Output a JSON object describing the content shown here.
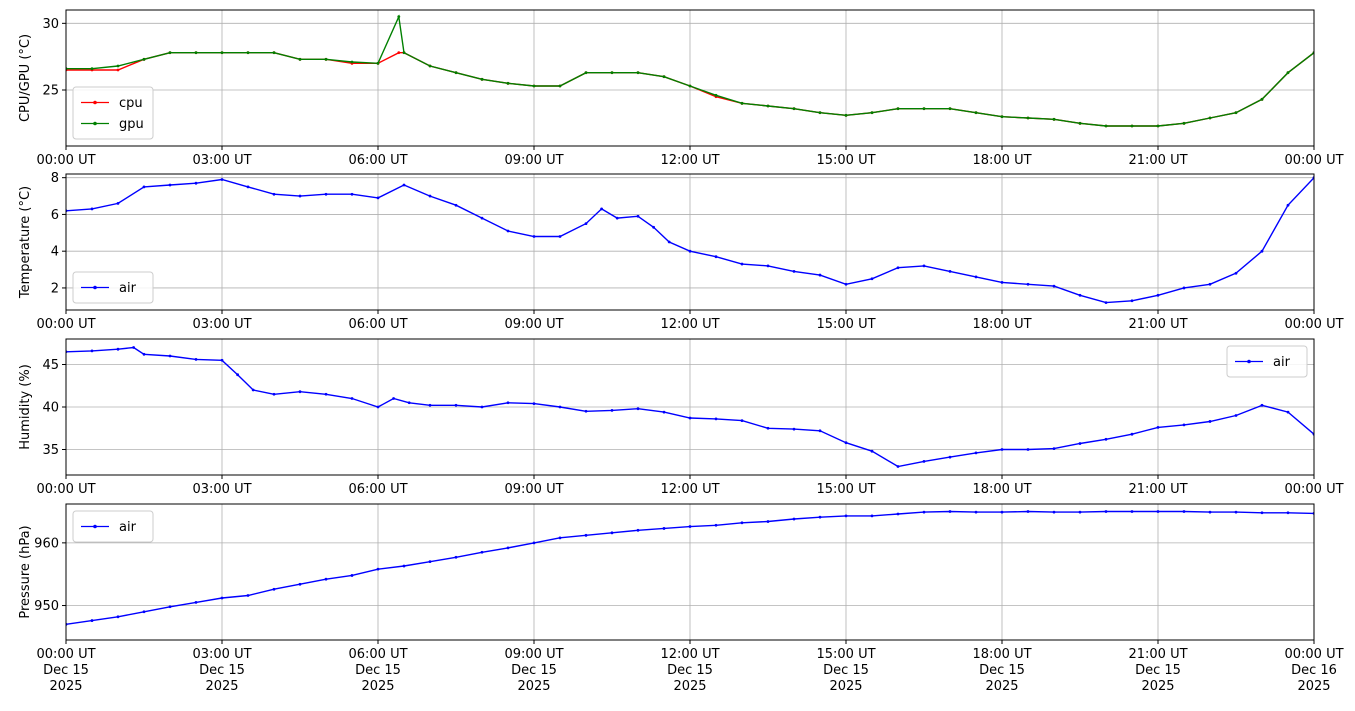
{
  "chart_data": [
    {
      "type": "line",
      "xlabel": "",
      "ylabel": "CPU/GPU (°C)",
      "x_ticks": [
        "00:00 UT",
        "03:00 UT",
        "06:00 UT",
        "09:00 UT",
        "12:00 UT",
        "15:00 UT",
        "18:00 UT",
        "21:00 UT",
        "00:00 UT"
      ],
      "xlim": [
        0,
        24
      ],
      "ylim": [
        20.8,
        31.0
      ],
      "y_ticks": [
        25,
        30
      ],
      "grid": true,
      "legend": "lower-left",
      "series": [
        {
          "name": "cpu",
          "color": "#ff0000",
          "x": [
            0,
            0.5,
            1,
            1.5,
            2,
            2.5,
            3,
            3.5,
            4,
            4.5,
            5,
            5.5,
            6,
            6.4,
            6.5,
            7,
            7.5,
            8,
            8.5,
            9,
            9.5,
            10,
            10.5,
            11,
            11.5,
            12,
            12.5,
            13,
            13.5,
            14,
            14.5,
            15,
            15.5,
            16,
            16.5,
            17,
            17.5,
            18,
            18.5,
            19,
            19.5,
            20,
            20.5,
            21,
            21.5,
            22,
            22.5,
            23,
            23.5,
            24
          ],
          "values": [
            26.5,
            26.5,
            26.5,
            27.3,
            27.8,
            27.8,
            27.8,
            27.8,
            27.8,
            27.3,
            27.3,
            27.0,
            27.0,
            27.8,
            27.8,
            26.8,
            26.3,
            25.8,
            25.5,
            25.3,
            25.3,
            26.3,
            26.3,
            26.3,
            26.0,
            25.3,
            24.5,
            24.0,
            23.8,
            23.6,
            23.3,
            23.1,
            23.3,
            23.6,
            23.6,
            23.6,
            23.3,
            23.0,
            22.9,
            22.8,
            22.5,
            22.3,
            22.3,
            22.3,
            22.5,
            22.9,
            23.3,
            24.3,
            26.3,
            27.8
          ]
        },
        {
          "name": "gpu",
          "color": "#008000",
          "x": [
            0,
            0.5,
            1,
            1.5,
            2,
            2.5,
            3,
            3.5,
            4,
            4.5,
            5,
            5.5,
            6,
            6.4,
            6.5,
            7,
            7.5,
            8,
            8.5,
            9,
            9.5,
            10,
            10.5,
            11,
            11.5,
            12,
            12.5,
            13,
            13.5,
            14,
            14.5,
            15,
            15.5,
            16,
            16.5,
            17,
            17.5,
            18,
            18.5,
            19,
            19.5,
            20,
            20.5,
            21,
            21.5,
            22,
            22.5,
            23,
            23.5,
            24
          ],
          "values": [
            26.6,
            26.6,
            26.8,
            27.3,
            27.8,
            27.8,
            27.8,
            27.8,
            27.8,
            27.3,
            27.3,
            27.1,
            27.0,
            30.5,
            27.8,
            26.8,
            26.3,
            25.8,
            25.5,
            25.3,
            25.3,
            26.3,
            26.3,
            26.3,
            26.0,
            25.3,
            24.6,
            24.0,
            23.8,
            23.6,
            23.3,
            23.1,
            23.3,
            23.6,
            23.6,
            23.6,
            23.3,
            23.0,
            22.9,
            22.8,
            22.5,
            22.3,
            22.3,
            22.3,
            22.5,
            22.9,
            23.3,
            24.3,
            26.3,
            27.8
          ]
        }
      ]
    },
    {
      "type": "line",
      "xlabel": "",
      "ylabel": "Temperature (°C)",
      "x_ticks": [
        "00:00 UT",
        "03:00 UT",
        "06:00 UT",
        "09:00 UT",
        "12:00 UT",
        "15:00 UT",
        "18:00 UT",
        "21:00 UT",
        "00:00 UT"
      ],
      "xlim": [
        0,
        24
      ],
      "ylim": [
        0.8,
        8.2
      ],
      "y_ticks": [
        2,
        4,
        6,
        8
      ],
      "grid": true,
      "legend": "lower-left",
      "series": [
        {
          "name": "air",
          "color": "#0000ff",
          "x": [
            0,
            0.5,
            1,
            1.5,
            2,
            2.5,
            3,
            3.5,
            4,
            4.5,
            5,
            5.5,
            6,
            6.5,
            7,
            7.5,
            8,
            8.5,
            9,
            9.5,
            10,
            10.3,
            10.6,
            11,
            11.3,
            11.6,
            12,
            12.5,
            13,
            13.5,
            14,
            14.5,
            15,
            15.5,
            16,
            16.5,
            17,
            17.5,
            18,
            18.5,
            19,
            19.5,
            20,
            20.5,
            21,
            21.5,
            22,
            22.5,
            23,
            23.5,
            24
          ],
          "values": [
            6.2,
            6.3,
            6.6,
            7.5,
            7.6,
            7.7,
            7.9,
            7.5,
            7.1,
            7.0,
            7.1,
            7.1,
            6.9,
            7.6,
            7.0,
            6.5,
            5.8,
            5.1,
            4.8,
            4.8,
            5.5,
            6.3,
            5.8,
            5.9,
            5.3,
            4.5,
            4.0,
            3.7,
            3.3,
            3.2,
            2.9,
            2.7,
            2.2,
            2.5,
            3.1,
            3.2,
            2.9,
            2.6,
            2.3,
            2.2,
            2.1,
            1.6,
            1.2,
            1.3,
            1.6,
            2.0,
            2.2,
            2.8,
            4.0,
            6.5,
            8.0
          ]
        }
      ]
    },
    {
      "type": "line",
      "xlabel": "",
      "ylabel": "Humidity (%)",
      "x_ticks": [
        "00:00 UT",
        "03:00 UT",
        "06:00 UT",
        "09:00 UT",
        "12:00 UT",
        "15:00 UT",
        "18:00 UT",
        "21:00 UT",
        "00:00 UT"
      ],
      "xlim": [
        0,
        24
      ],
      "ylim": [
        32,
        48
      ],
      "y_ticks": [
        35,
        40,
        45
      ],
      "grid": true,
      "legend": "upper-right",
      "series": [
        {
          "name": "air",
          "color": "#0000ff",
          "x": [
            0,
            0.5,
            1,
            1.3,
            1.5,
            2,
            2.5,
            3,
            3.3,
            3.6,
            4,
            4.5,
            5,
            5.5,
            6,
            6.3,
            6.6,
            7,
            7.5,
            8,
            8.5,
            9,
            9.5,
            10,
            10.5,
            11,
            11.5,
            12,
            12.5,
            13,
            13.5,
            14,
            14.5,
            15,
            15.5,
            16,
            16.5,
            17,
            17.5,
            18,
            18.5,
            19,
            19.5,
            20,
            20.5,
            21,
            21.5,
            22,
            22.5,
            23,
            23.5,
            24
          ],
          "values": [
            46.5,
            46.6,
            46.8,
            47.0,
            46.2,
            46.0,
            45.6,
            45.5,
            43.8,
            42.0,
            41.5,
            41.8,
            41.5,
            41.0,
            40.0,
            41.0,
            40.5,
            40.2,
            40.2,
            40.0,
            40.5,
            40.4,
            40.0,
            39.5,
            39.6,
            39.8,
            39.4,
            38.7,
            38.6,
            38.4,
            37.5,
            37.4,
            37.2,
            35.8,
            34.8,
            33.0,
            33.6,
            34.1,
            34.6,
            35.0,
            35.0,
            35.1,
            35.7,
            36.2,
            36.8,
            37.6,
            37.9,
            38.3,
            39.0,
            40.2,
            39.4,
            36.8
          ]
        }
      ]
    },
    {
      "type": "line",
      "xlabel": "",
      "ylabel": "Pressure (hPa)",
      "x_ticks": [
        "00:00 UT\nDec 15\n2025",
        "03:00 UT\nDec 15\n2025",
        "06:00 UT\nDec 15\n2025",
        "09:00 UT\nDec 15\n2025",
        "12:00 UT\nDec 15\n2025",
        "15:00 UT\nDec 15\n2025",
        "18:00 UT\nDec 15\n2025",
        "21:00 UT\nDec 15\n2025",
        "00:00 UT\nDec 16\n2025"
      ],
      "xlim": [
        0,
        24
      ],
      "ylim": [
        944.5,
        966.2
      ],
      "y_ticks": [
        950,
        960
      ],
      "grid": true,
      "legend": "upper-left",
      "series": [
        {
          "name": "air",
          "color": "#0000ff",
          "x": [
            0,
            0.5,
            1,
            1.5,
            2,
            2.5,
            3,
            3.5,
            4,
            4.5,
            5,
            5.5,
            6,
            6.5,
            7,
            7.5,
            8,
            8.5,
            9,
            9.5,
            10,
            10.5,
            11,
            11.5,
            12,
            12.5,
            13,
            13.5,
            14,
            14.5,
            15,
            15.5,
            16,
            16.5,
            17,
            17.5,
            18,
            18.5,
            19,
            19.5,
            20,
            20.5,
            21,
            21.5,
            22,
            22.5,
            23,
            23.5,
            24
          ],
          "values": [
            947.0,
            947.6,
            948.2,
            949.0,
            949.8,
            950.5,
            951.2,
            951.6,
            952.6,
            953.4,
            954.2,
            954.8,
            955.8,
            956.3,
            957.0,
            957.7,
            958.5,
            959.2,
            960.0,
            960.8,
            961.2,
            961.6,
            962.0,
            962.3,
            962.6,
            962.8,
            963.2,
            963.4,
            963.8,
            964.1,
            964.3,
            964.3,
            964.6,
            964.9,
            965.0,
            964.9,
            964.9,
            965.0,
            964.9,
            964.9,
            965.0,
            965.0,
            965.0,
            965.0,
            964.9,
            964.9,
            964.8,
            964.8,
            964.7
          ]
        }
      ]
    }
  ]
}
